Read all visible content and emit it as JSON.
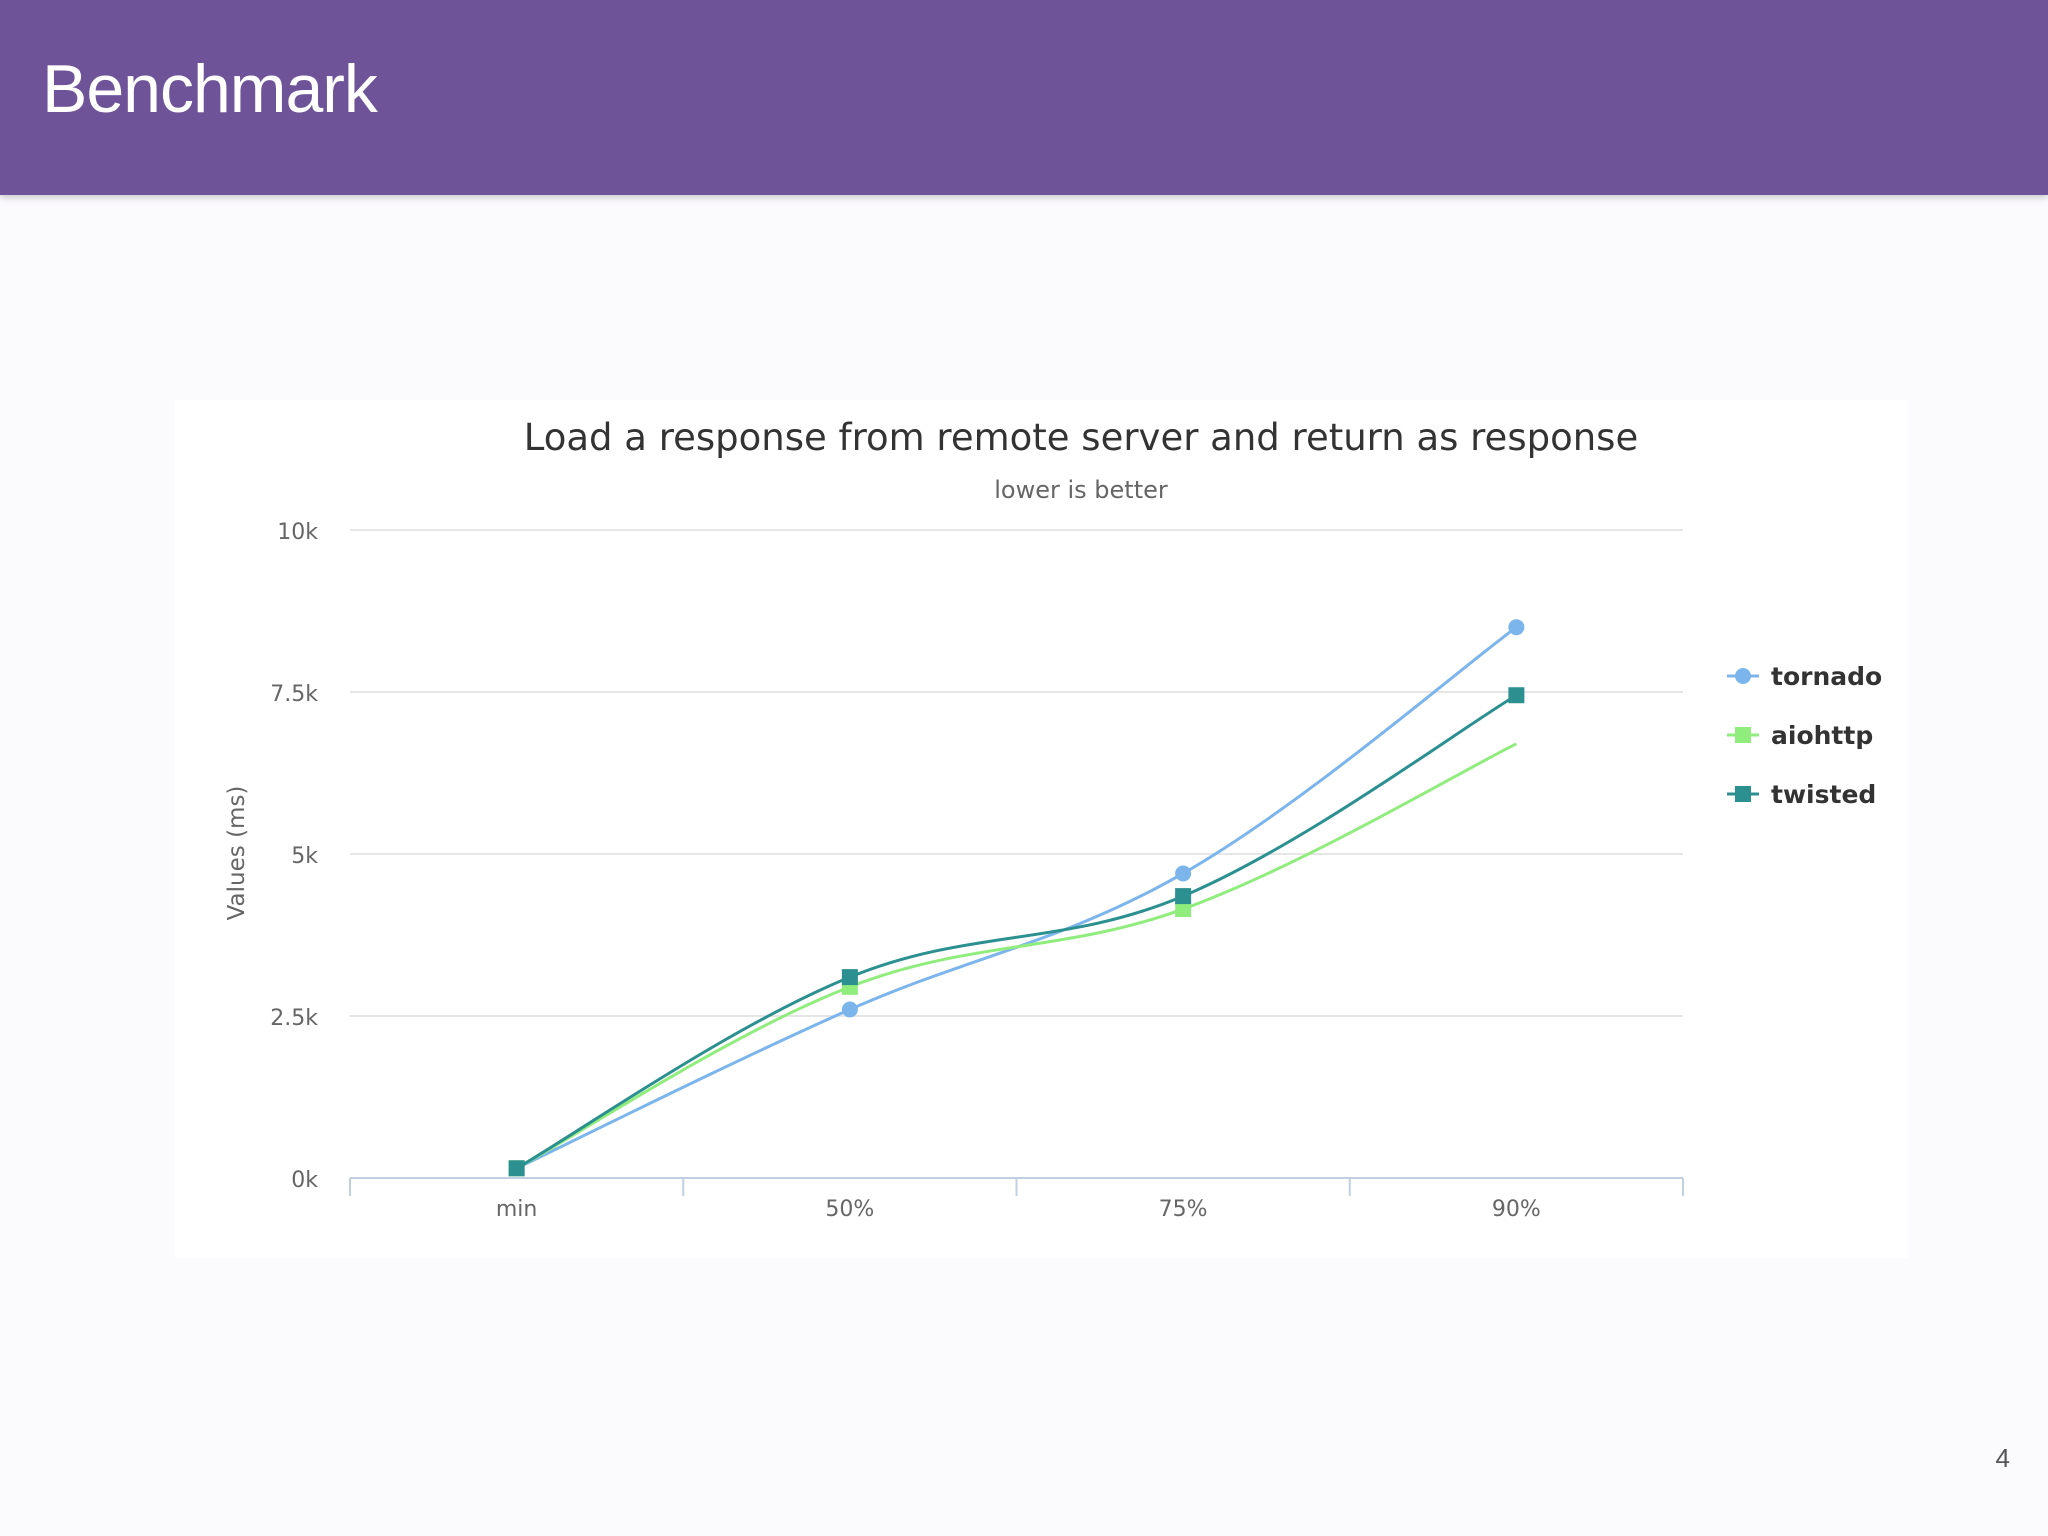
{
  "slide": {
    "title": "Benchmark",
    "page_number": "4"
  },
  "colors": {
    "header_background": "#6f5398",
    "tornado": "#7cb5ec",
    "aiohttp": "#90ed7d",
    "twisted": "#2b908f"
  },
  "chart_data": {
    "type": "line",
    "title": "Load a response from remote server and return as response",
    "subtitle": "lower is better",
    "ylabel": "Values (ms)",
    "xlabel": "",
    "categories": [
      "min",
      "50%",
      "75%",
      "90%"
    ],
    "ylim": [
      0,
      10000
    ],
    "yticks": [
      0,
      2500,
      5000,
      7500,
      10000
    ],
    "ytick_labels": [
      "0k",
      "2.5k",
      "5k",
      "7.5k",
      "10k"
    ],
    "grid": true,
    "legend_position": "right",
    "series": [
      {
        "name": "tornado",
        "marker": "circle",
        "color": "#7cb5ec",
        "values": [
          150,
          2600,
          4700,
          8500
        ]
      },
      {
        "name": "aiohttp",
        "marker": "square",
        "color": "#90ed7d",
        "values": [
          150,
          2950,
          4150,
          6700
        ]
      },
      {
        "name": "twisted",
        "marker": "square",
        "color": "#2b908f",
        "values": [
          150,
          3100,
          4350,
          7450
        ]
      }
    ]
  }
}
